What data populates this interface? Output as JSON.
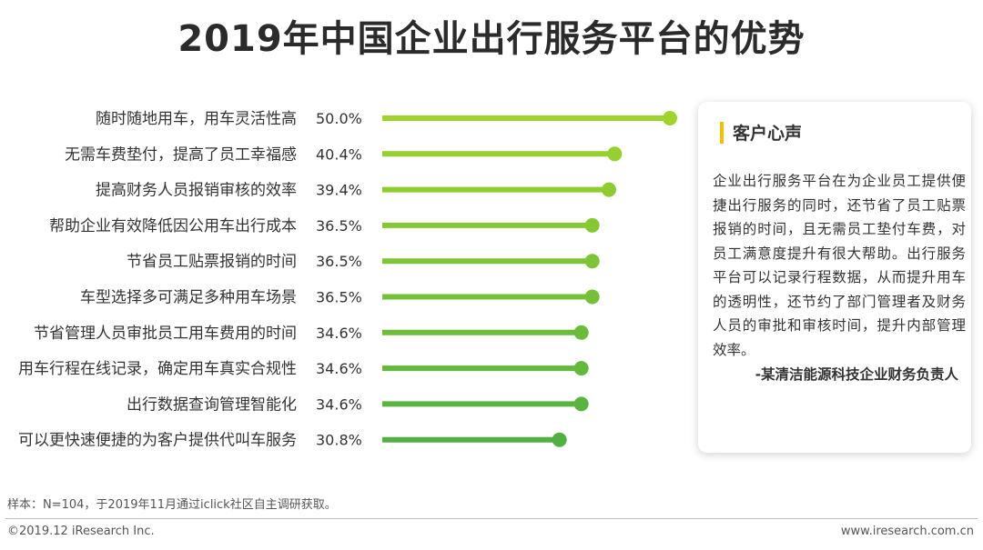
{
  "chart_data": {
    "type": "bar",
    "orientation": "horizontal",
    "title": "2019年中国企业出行服务平台的优势",
    "categories": [
      "随时随地用车，用车灵活性高",
      "无需车费垫付，提高了员工幸福感",
      "提高财务人员报销审核的效率",
      "帮助企业有效降低因公用车出行成本",
      "节省员工贴票报销的时间",
      "车型选择多可满足多种用车场景",
      "节省管理人员审批员工用车费用的时间",
      "用车行程在线记录，确定用车真实合规性",
      "出行数据查询管理智能化",
      "可以更快速便捷的为客户提供代叫车服务"
    ],
    "values": [
      50.0,
      40.4,
      39.4,
      36.5,
      36.5,
      36.5,
      34.6,
      34.6,
      34.6,
      30.8
    ],
    "value_labels": [
      "50.0%",
      "40.4%",
      "39.4%",
      "36.5%",
      "36.5%",
      "36.5%",
      "34.6%",
      "34.6%",
      "34.6%",
      "30.8%"
    ],
    "unit": "%",
    "xlim": [
      0,
      50
    ],
    "grid": false,
    "colors": {
      "top": "#9fd42c",
      "bottom": "#52b043"
    }
  },
  "panel": {
    "title": "客户心声",
    "body": "企业出行服务平台在为企业员工提供便捷出行服务的同时，还节省了员工贴票报销的时间，且无需员工垫付车费，对员工满意度提升有很大帮助。出行服务平台可以记录行程数据，从而提升用车的透明性，还节约了部门管理者及财务人员的审批和审核时间，提升内部管理效率。",
    "source": "-某清洁能源科技企业财务负责人",
    "accent_color": "#f2c200"
  },
  "footer": {
    "note": "样本：N=104，于2019年11月通过iclick社区自主调研获取。",
    "copyright": "©2019.12 iResearch Inc.",
    "website": "www.iresearch.com.cn"
  }
}
